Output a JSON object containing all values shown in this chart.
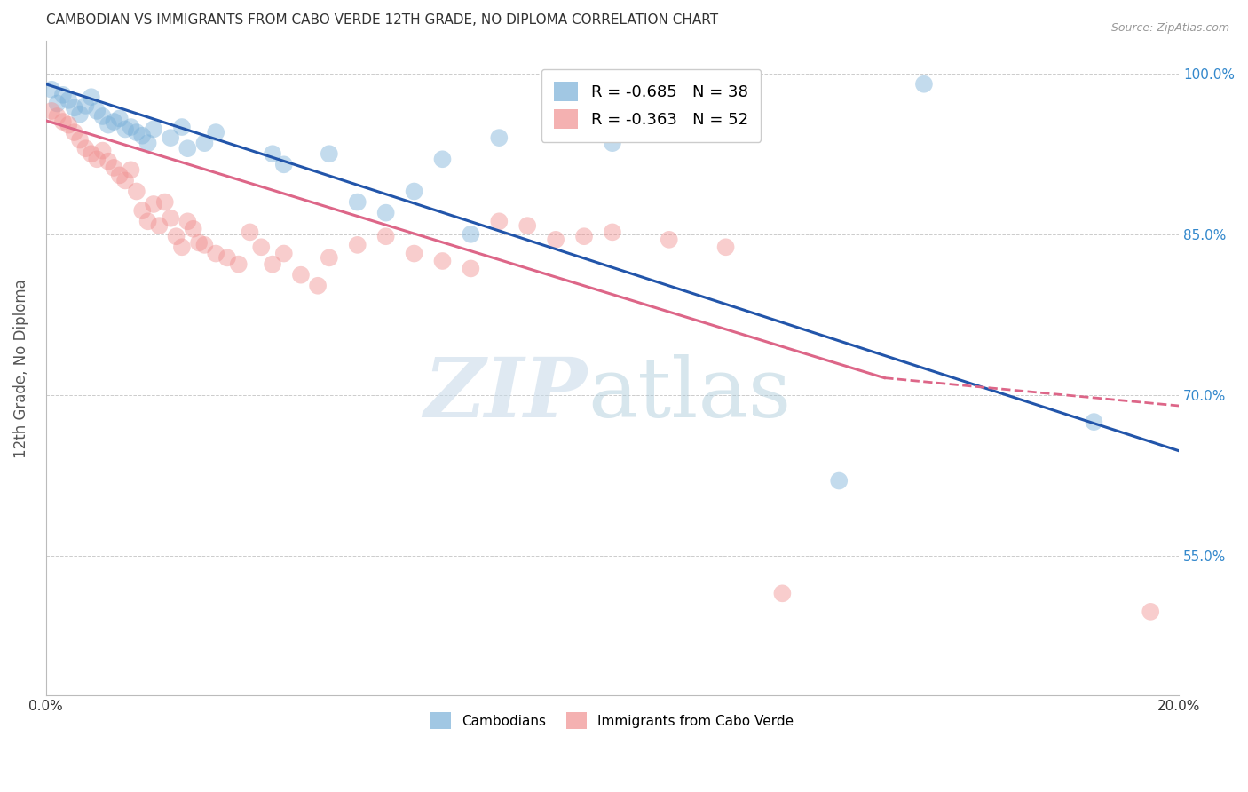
{
  "title": "CAMBODIAN VS IMMIGRANTS FROM CABO VERDE 12TH GRADE, NO DIPLOMA CORRELATION CHART",
  "source": "Source: ZipAtlas.com",
  "ylabel": "12th Grade, No Diploma",
  "legend": [
    {
      "label": "R = -0.685   N = 38",
      "color": "#7ab0d8"
    },
    {
      "label": "R = -0.363   N = 52",
      "color": "#f09090"
    }
  ],
  "legend_names": [
    "Cambodians",
    "Immigrants from Cabo Verde"
  ],
  "xlim": [
    0.0,
    0.2
  ],
  "ylim": [
    0.42,
    1.03
  ],
  "yticks": [
    0.55,
    0.7,
    0.85,
    1.0
  ],
  "ytick_labels": [
    "55.0%",
    "70.0%",
    "85.0%",
    "100.0%"
  ],
  "xticks": [
    0.0,
    0.04,
    0.08,
    0.12,
    0.16,
    0.2
  ],
  "xtick_labels": [
    "0.0%",
    "",
    "",
    "",
    "",
    "20.0%"
  ],
  "blue_color": "#7ab0d8",
  "pink_color": "#f09090",
  "blue_line_color": "#2255aa",
  "pink_line_color": "#dd6688",
  "blue_scatter": [
    [
      0.001,
      0.985
    ],
    [
      0.002,
      0.972
    ],
    [
      0.003,
      0.98
    ],
    [
      0.004,
      0.975
    ],
    [
      0.005,
      0.968
    ],
    [
      0.006,
      0.962
    ],
    [
      0.007,
      0.97
    ],
    [
      0.008,
      0.978
    ],
    [
      0.009,
      0.965
    ],
    [
      0.01,
      0.96
    ],
    [
      0.011,
      0.952
    ],
    [
      0.012,
      0.955
    ],
    [
      0.013,
      0.958
    ],
    [
      0.014,
      0.948
    ],
    [
      0.015,
      0.95
    ],
    [
      0.016,
      0.945
    ],
    [
      0.017,
      0.942
    ],
    [
      0.018,
      0.935
    ],
    [
      0.019,
      0.948
    ],
    [
      0.022,
      0.94
    ],
    [
      0.024,
      0.95
    ],
    [
      0.025,
      0.93
    ],
    [
      0.028,
      0.935
    ],
    [
      0.03,
      0.945
    ],
    [
      0.04,
      0.925
    ],
    [
      0.042,
      0.915
    ],
    [
      0.05,
      0.925
    ],
    [
      0.055,
      0.88
    ],
    [
      0.06,
      0.87
    ],
    [
      0.065,
      0.89
    ],
    [
      0.07,
      0.92
    ],
    [
      0.075,
      0.85
    ],
    [
      0.08,
      0.94
    ],
    [
      0.09,
      0.96
    ],
    [
      0.1,
      0.935
    ],
    [
      0.14,
      0.62
    ],
    [
      0.155,
      0.99
    ],
    [
      0.185,
      0.675
    ]
  ],
  "pink_scatter": [
    [
      0.001,
      0.965
    ],
    [
      0.002,
      0.96
    ],
    [
      0.003,
      0.955
    ],
    [
      0.004,
      0.952
    ],
    [
      0.005,
      0.945
    ],
    [
      0.006,
      0.938
    ],
    [
      0.007,
      0.93
    ],
    [
      0.008,
      0.925
    ],
    [
      0.009,
      0.92
    ],
    [
      0.01,
      0.928
    ],
    [
      0.011,
      0.918
    ],
    [
      0.012,
      0.912
    ],
    [
      0.013,
      0.905
    ],
    [
      0.014,
      0.9
    ],
    [
      0.015,
      0.91
    ],
    [
      0.016,
      0.89
    ],
    [
      0.017,
      0.872
    ],
    [
      0.018,
      0.862
    ],
    [
      0.019,
      0.878
    ],
    [
      0.02,
      0.858
    ],
    [
      0.021,
      0.88
    ],
    [
      0.022,
      0.865
    ],
    [
      0.023,
      0.848
    ],
    [
      0.024,
      0.838
    ],
    [
      0.025,
      0.862
    ],
    [
      0.026,
      0.855
    ],
    [
      0.027,
      0.842
    ],
    [
      0.028,
      0.84
    ],
    [
      0.03,
      0.832
    ],
    [
      0.032,
      0.828
    ],
    [
      0.034,
      0.822
    ],
    [
      0.036,
      0.852
    ],
    [
      0.038,
      0.838
    ],
    [
      0.04,
      0.822
    ],
    [
      0.042,
      0.832
    ],
    [
      0.045,
      0.812
    ],
    [
      0.048,
      0.802
    ],
    [
      0.05,
      0.828
    ],
    [
      0.055,
      0.84
    ],
    [
      0.06,
      0.848
    ],
    [
      0.065,
      0.832
    ],
    [
      0.07,
      0.825
    ],
    [
      0.075,
      0.818
    ],
    [
      0.08,
      0.862
    ],
    [
      0.085,
      0.858
    ],
    [
      0.09,
      0.845
    ],
    [
      0.095,
      0.848
    ],
    [
      0.1,
      0.852
    ],
    [
      0.11,
      0.845
    ],
    [
      0.12,
      0.838
    ],
    [
      0.13,
      0.515
    ],
    [
      0.195,
      0.498
    ]
  ],
  "blue_line": {
    "x0": 0.0,
    "y0": 0.99,
    "x1": 0.2,
    "y1": 0.648
  },
  "pink_line_solid": {
    "x0": 0.0,
    "y0": 0.956,
    "x1": 0.148,
    "y1": 0.716
  },
  "pink_line_dash": {
    "x0": 0.148,
    "y0": 0.716,
    "x1": 0.2,
    "y1": 0.69
  },
  "background_color": "#ffffff",
  "grid_color": "#cccccc",
  "right_axis_color": "#3388cc"
}
